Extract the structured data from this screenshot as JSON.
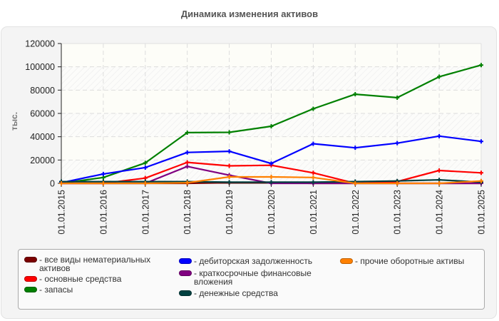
{
  "title": "Динамика изменения активов",
  "chart_data": {
    "type": "line",
    "title": "Динамика изменения активов",
    "xlabel": "",
    "ylabel": "тыс.",
    "ylim": [
      0,
      120000
    ],
    "yticks": [
      0,
      20000,
      40000,
      60000,
      80000,
      100000,
      120000
    ],
    "grid": true,
    "legend_position": "bottom",
    "categories": [
      "01.01.2015",
      "01.01.2016",
      "01.01.2017",
      "01.01.2018",
      "01.01.2019",
      "01.01.2020",
      "01.01.2021",
      "01.01.2022",
      "01.01.2023",
      "01.01.2024",
      "01.01.2025"
    ],
    "series": [
      {
        "name": "все виды нематериальных активов",
        "color": "#7b0000",
        "values": [
          0,
          0,
          0,
          0,
          500,
          500,
          0,
          0,
          0,
          0,
          0
        ]
      },
      {
        "name": "основные средства",
        "color": "#ff0000",
        "values": [
          0,
          0,
          4500,
          18000,
          15000,
          15500,
          9000,
          0,
          1500,
          11000,
          9000
        ]
      },
      {
        "name": "запасы",
        "color": "#008000",
        "values": [
          0,
          5000,
          17500,
          43500,
          43800,
          49000,
          64000,
          76500,
          73500,
          91500,
          101500
        ]
      },
      {
        "name": "дебиторская задолженность",
        "color": "#0000ff",
        "values": [
          500,
          8000,
          13500,
          26500,
          27500,
          17000,
          34000,
          30500,
          34500,
          40500,
          36000
        ]
      },
      {
        "name": "краткосрочные финансовые вложения",
        "color": "#800080",
        "values": [
          0,
          0,
          0,
          14500,
          7000,
          0,
          0,
          0,
          0,
          0,
          0
        ]
      },
      {
        "name": "денежные средства",
        "color": "#004040",
        "values": [
          1500,
          1500,
          1500,
          1500,
          1000,
          1000,
          1000,
          1500,
          2000,
          3000,
          1000
        ]
      },
      {
        "name": "прочие оборотные активы",
        "color": "#ff8000",
        "values": [
          0,
          0,
          0,
          500,
          5500,
          5500,
          5000,
          0,
          0,
          0,
          2000
        ]
      }
    ]
  },
  "legend": {
    "items": [
      {
        "label": "- все виды нематериальных\nактивов",
        "color": "#7b0000"
      },
      {
        "label": "- основные средства",
        "color": "#ff0000"
      },
      {
        "label": "- запасы",
        "color": "#008000"
      },
      {
        "label": "- дебиторская задолженность",
        "color": "#0000ff"
      },
      {
        "label": "- краткосрочные финансовые\nвложения",
        "color": "#800080"
      },
      {
        "label": "- денежные средства",
        "color": "#004040"
      },
      {
        "label": "- прочие оборотные активы",
        "color": "#ff8000"
      }
    ]
  }
}
